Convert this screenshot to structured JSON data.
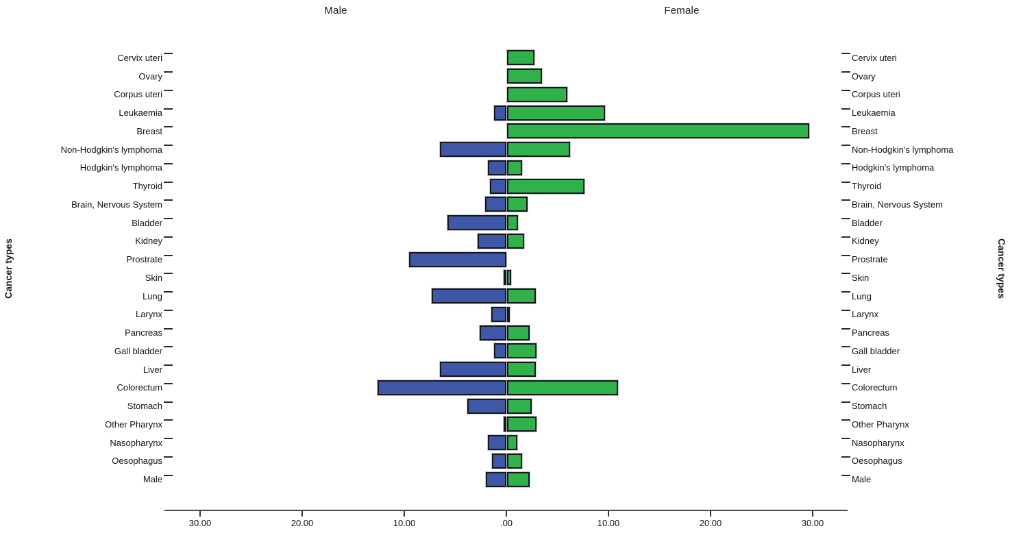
{
  "titles": {
    "left": "Male",
    "right": "Female"
  },
  "y_axis_label_left": "Cancer types",
  "y_axis_label_right": "Cancer types",
  "x_axis": {
    "tick_labels": [
      "30.00",
      "20.00",
      "10.00",
      ".00",
      "10.00",
      "20.00",
      "30.00"
    ],
    "tick_values": [
      -30,
      -20,
      -10,
      0,
      10,
      20,
      30
    ]
  },
  "colors": {
    "male_bar": "#3f57a7",
    "female_bar": "#2fb24a",
    "bar_border": "#15171c",
    "axis": "#4a4a4a"
  },
  "chart_data": {
    "type": "bar",
    "orientation": "horizontal-diverging",
    "title": "",
    "xlabel": "",
    "ylabel": "Cancer types",
    "legend_position": "none",
    "grid": false,
    "xlim": [
      -33.4,
      33.4
    ],
    "categories": [
      "Cervix uteri",
      "Ovary",
      "Corpus uteri",
      "Leukaemia",
      "Breast",
      "Non-Hodgkin's lymphoma",
      "Hodgkin's lymphoma",
      "Thyroid",
      "Brain, Nervous System",
      "Bladder",
      "Kidney",
      "Prostrate",
      "Skin",
      "Lung",
      "Larynx",
      "Pancreas",
      "Gall bladder",
      "Liver",
      "Colorectum",
      "Stomach",
      "Other Pharynx",
      "Nasopharynx",
      "Oesophagus",
      "Male"
    ],
    "series": [
      {
        "name": "Male",
        "values": [
          0,
          0,
          0,
          1.2,
          0,
          6.5,
          1.8,
          1.6,
          2.1,
          5.8,
          2.8,
          9.5,
          0.3,
          7.3,
          1.5,
          2.6,
          1.2,
          6.5,
          12.6,
          3.8,
          0.3,
          1.8,
          1.4,
          2.0
        ]
      },
      {
        "name": "Female",
        "values": [
          2.7,
          3.4,
          5.9,
          9.6,
          29.6,
          6.2,
          1.5,
          7.6,
          2.0,
          1.1,
          1.7,
          0,
          0.4,
          2.8,
          0.3,
          2.2,
          2.9,
          2.8,
          10.9,
          2.4,
          2.9,
          1.0,
          1.5,
          2.2
        ]
      }
    ]
  }
}
